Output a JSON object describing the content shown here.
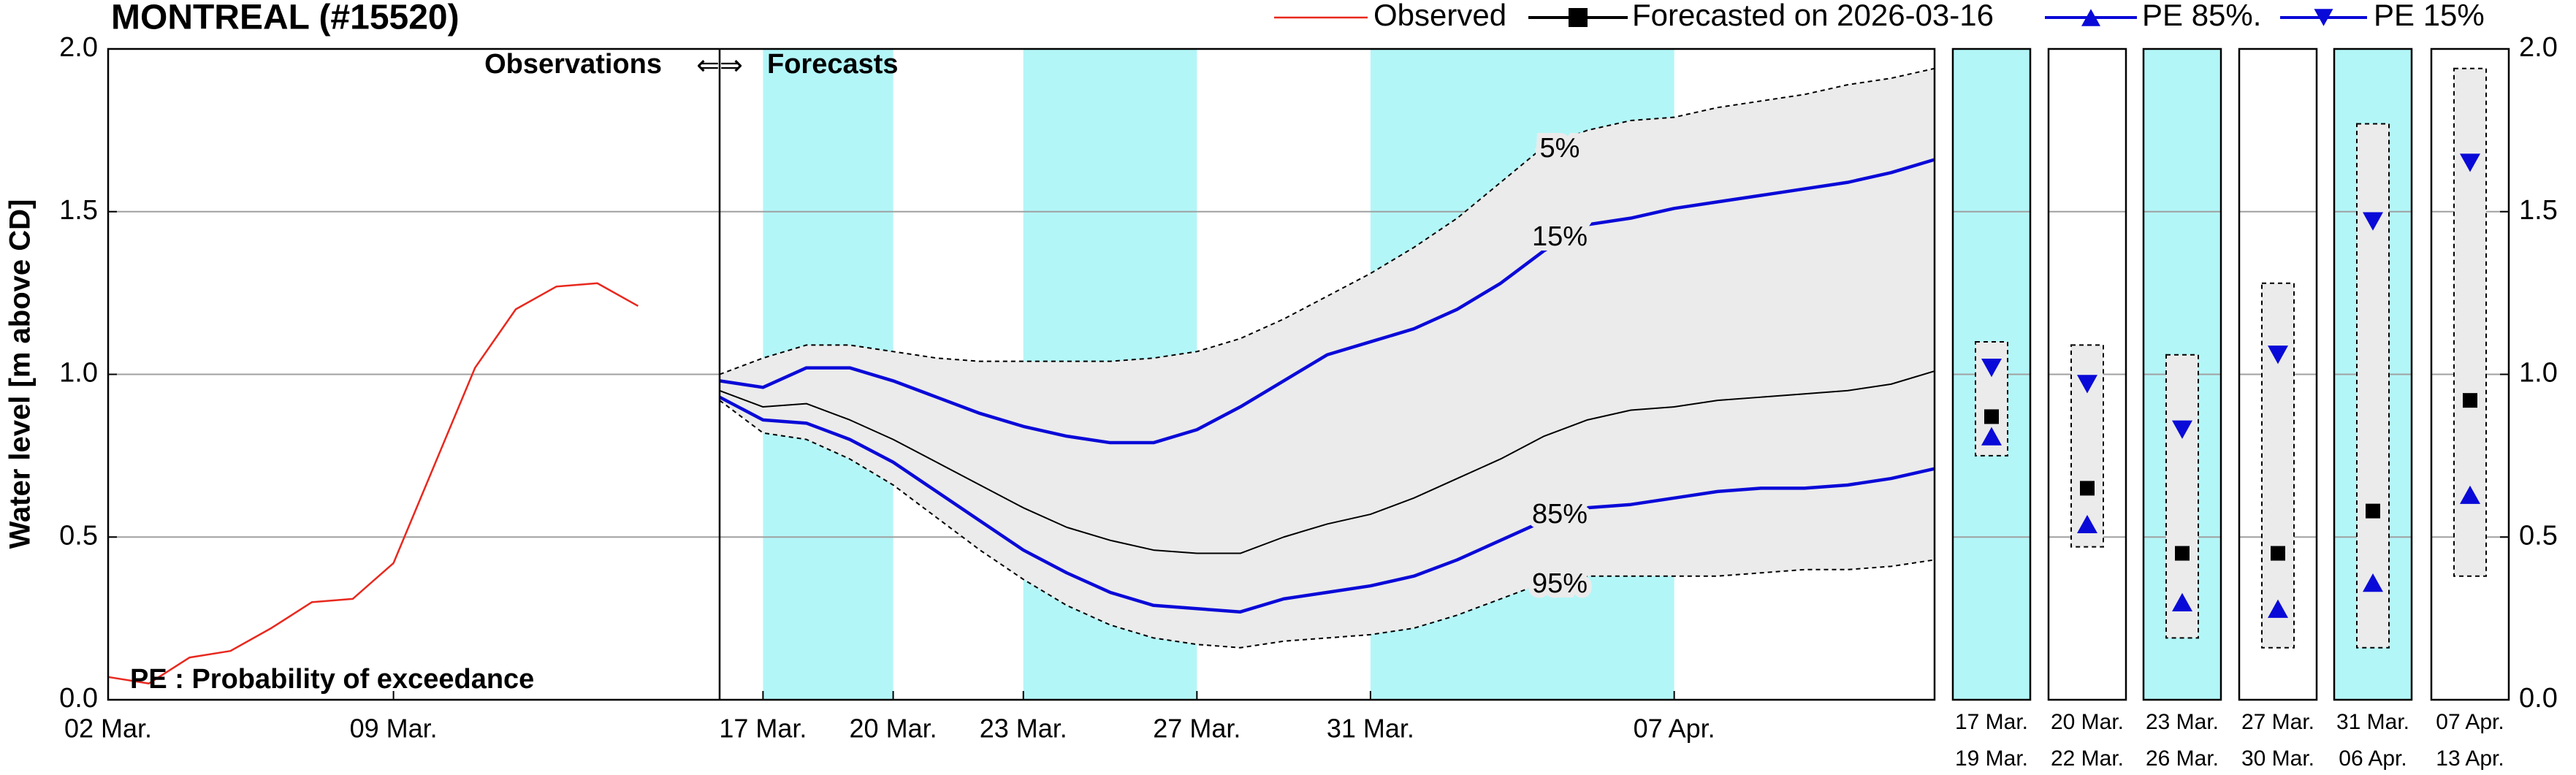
{
  "chart_data": {
    "type": "line",
    "title": "MONTREAL (#15520)",
    "ylabel": "Water level [m above CD]",
    "ylim": [
      0,
      2
    ],
    "yticks": [
      {
        "value": 0,
        "label": "0.0"
      },
      0.5,
      {
        "value": 1,
        "label": "1.0"
      },
      1.5,
      {
        "value": 2,
        "label": "2.0"
      }
    ],
    "grid": true,
    "legend": "top-right",
    "divider": {
      "left": "Observations",
      "arrow": "⇐⇒",
      "right": "Forecasts"
    },
    "note": "PE : Probability of exceedance",
    "observed": {
      "name": "Observed",
      "color": "#e8281e",
      "xlim": [
        "2026-03-02",
        "2026-03-17"
      ],
      "xticks": [
        {
          "value": "2026-03-02",
          "label": "02 Mar."
        },
        {
          "value": "2026-03-09",
          "label": "09 Mar."
        }
      ],
      "x": [
        "2026-03-02",
        "2026-03-03",
        "2026-03-04",
        "2026-03-05",
        "2026-03-06",
        "2026-03-07",
        "2026-03-08",
        "2026-03-09",
        "2026-03-10",
        "2026-03-11",
        "2026-03-12",
        "2026-03-13",
        "2026-03-14",
        "2026-03-15"
      ],
      "values": [
        0.07,
        0.05,
        0.13,
        0.15,
        0.22,
        0.3,
        0.31,
        0.42,
        0.72,
        1.02,
        1.2,
        1.27,
        1.28,
        1.21
      ]
    },
    "xlim": [
      "2026-03-16",
      "2026-04-13"
    ],
    "xticks": [
      {
        "value": "2026-03-17",
        "label": "17 Mar."
      },
      {
        "value": "2026-03-20",
        "label": "20 Mar."
      },
      {
        "value": "2026-03-23",
        "label": "23 Mar."
      },
      {
        "value": "2026-03-27",
        "label": "27 Mar."
      },
      {
        "value": "2026-03-31",
        "label": "31 Mar."
      },
      {
        "value": "2026-04-07",
        "label": "07 Apr."
      }
    ],
    "x": [
      "2026-03-16",
      "2026-03-17",
      "2026-03-18",
      "2026-03-19",
      "2026-03-20",
      "2026-03-21",
      "2026-03-22",
      "2026-03-23",
      "2026-03-24",
      "2026-03-25",
      "2026-03-26",
      "2026-03-27",
      "2026-03-28",
      "2026-03-29",
      "2026-03-30",
      "2026-03-31",
      "2026-04-01",
      "2026-04-02",
      "2026-04-03",
      "2026-04-04",
      "2026-04-05",
      "2026-04-06",
      "2026-04-07",
      "2026-04-08",
      "2026-04-09",
      "2026-04-10",
      "2026-04-11",
      "2026-04-12",
      "2026-04-13"
    ],
    "highlight_color": "#b3f6f8",
    "highlight_periods": [
      [
        "2026-03-17",
        "2026-03-20"
      ],
      [
        "2026-03-23",
        "2026-03-27"
      ],
      [
        "2026-03-31",
        "2026-04-07"
      ]
    ],
    "series": [
      {
        "name": "Forecasted on 2026-03-16",
        "color": "#000000",
        "marker": "square",
        "values": [
          0.95,
          0.9,
          0.91,
          0.86,
          0.8,
          0.73,
          0.66,
          0.59,
          0.53,
          0.49,
          0.46,
          0.45,
          0.45,
          0.5,
          0.54,
          0.57,
          0.62,
          0.68,
          0.74,
          0.81,
          0.86,
          0.89,
          0.9,
          0.92,
          0.93,
          0.94,
          0.95,
          0.97,
          1.01
        ]
      },
      {
        "name": "PE 85%.",
        "color": "#0a0ad8",
        "marker": "triangle-up",
        "curve_label": "85%",
        "values": [
          0.93,
          0.86,
          0.85,
          0.8,
          0.73,
          0.64,
          0.55,
          0.46,
          0.39,
          0.33,
          0.29,
          0.28,
          0.27,
          0.31,
          0.33,
          0.35,
          0.38,
          0.43,
          0.49,
          0.55,
          0.59,
          0.6,
          0.62,
          0.64,
          0.65,
          0.65,
          0.66,
          0.68,
          0.71
        ]
      },
      {
        "name": "PE 15%",
        "color": "#0a0ad8",
        "marker": "triangle-down",
        "curve_label": "15%",
        "values": [
          0.98,
          0.96,
          1.02,
          1.02,
          0.98,
          0.93,
          0.88,
          0.84,
          0.81,
          0.79,
          0.79,
          0.83,
          0.9,
          0.98,
          1.06,
          1.1,
          1.14,
          1.2,
          1.28,
          1.38,
          1.46,
          1.48,
          1.51,
          1.53,
          1.55,
          1.57,
          1.59,
          1.62,
          1.66
        ]
      }
    ],
    "band": {
      "color": "#ebebeb",
      "upper": {
        "label": "5%",
        "values": [
          1.0,
          1.05,
          1.09,
          1.09,
          1.07,
          1.05,
          1.04,
          1.04,
          1.04,
          1.04,
          1.05,
          1.07,
          1.11,
          1.17,
          1.24,
          1.31,
          1.39,
          1.48,
          1.59,
          1.7,
          1.75,
          1.78,
          1.79,
          1.82,
          1.84,
          1.86,
          1.89,
          1.91,
          1.94
        ]
      },
      "lower": {
        "label": "95%",
        "values": [
          0.92,
          0.82,
          0.8,
          0.74,
          0.66,
          0.56,
          0.46,
          0.37,
          0.29,
          0.23,
          0.19,
          0.17,
          0.16,
          0.18,
          0.19,
          0.2,
          0.22,
          0.26,
          0.31,
          0.36,
          0.38,
          0.38,
          0.38,
          0.38,
          0.39,
          0.4,
          0.4,
          0.41,
          0.43
        ]
      }
    },
    "periods": [
      {
        "from": "17 Mar.",
        "to": "19 Mar.",
        "highlight": true,
        "range": [
          0.75,
          1.1
        ],
        "values": [
          0.87,
          0.81,
          1.02
        ]
      },
      {
        "from": "20 Mar.",
        "to": "22 Mar.",
        "highlight": false,
        "range": [
          0.47,
          1.09
        ],
        "values": [
          0.65,
          0.54,
          0.97
        ]
      },
      {
        "from": "23 Mar.",
        "to": "26 Mar.",
        "highlight": true,
        "range": [
          0.19,
          1.06
        ],
        "values": [
          0.45,
          0.3,
          0.83
        ]
      },
      {
        "from": "27 Mar.",
        "to": "30 Mar.",
        "highlight": false,
        "range": [
          0.16,
          1.28
        ],
        "values": [
          0.45,
          0.28,
          1.06
        ]
      },
      {
        "from": "31 Mar.",
        "to": "06 Apr.",
        "highlight": true,
        "range": [
          0.16,
          1.77
        ],
        "values": [
          0.58,
          0.36,
          1.47
        ]
      },
      {
        "from": "07 Apr.",
        "to": "13 Apr.",
        "highlight": false,
        "range": [
          0.38,
          1.94
        ],
        "values": [
          0.92,
          0.63,
          1.65
        ]
      }
    ]
  }
}
